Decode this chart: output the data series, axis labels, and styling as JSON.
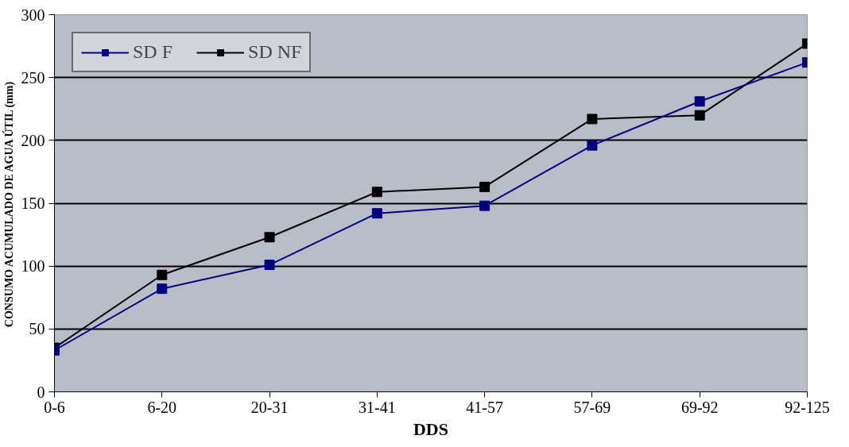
{
  "chart_data": {
    "type": "line",
    "xlabel": "DDS",
    "ylabel": "CONSUMO ACUMULADO DE AGUA ÚTIL (mm)",
    "categories": [
      "0-6",
      "6-20",
      "20-31",
      "31-41",
      "41-57",
      "57-69",
      "69-92",
      "92-125"
    ],
    "series": [
      {
        "name": "SD F",
        "color": "#000080",
        "values": [
          33,
          82,
          101,
          142,
          148,
          196,
          231,
          262
        ]
      },
      {
        "name": "SD NF",
        "color": "#000000",
        "values": [
          35,
          93,
          123,
          159,
          163,
          217,
          220,
          277
        ]
      }
    ],
    "ylim": [
      0,
      300
    ],
    "yticks": [
      0,
      50,
      100,
      150,
      200,
      250,
      300
    ],
    "grid": "y",
    "legend": "top left",
    "marker": "square",
    "line_style": "solid"
  }
}
